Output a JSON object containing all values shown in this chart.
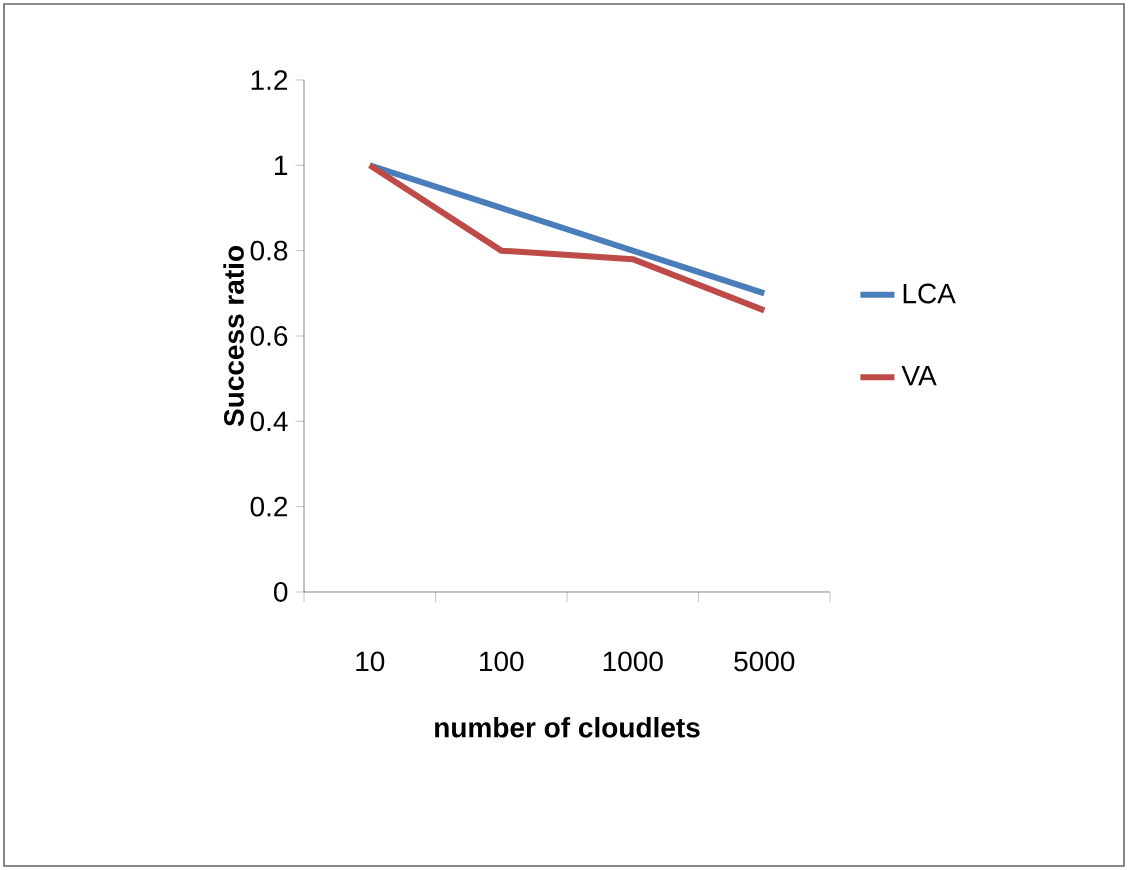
{
  "chart_data": {
    "type": "line",
    "xlabel": "number of cloudlets",
    "ylabel": "Success ratio",
    "categories": [
      "10",
      "100",
      "1000",
      "5000"
    ],
    "series": [
      {
        "name": "LCA",
        "color": "#4a7ebb",
        "values": [
          1,
          0.9,
          0.8,
          0.7
        ]
      },
      {
        "name": "VA",
        "color": "#be4b48",
        "values": [
          1,
          0.8,
          0.78,
          0.66
        ]
      }
    ],
    "ylim": [
      0,
      1.2
    ],
    "yticks": [
      0,
      0.2,
      0.4,
      0.6,
      0.8,
      1,
      1.2
    ],
    "legend": "right",
    "grid": false,
    "marker": "none",
    "line_style": "solid"
  }
}
